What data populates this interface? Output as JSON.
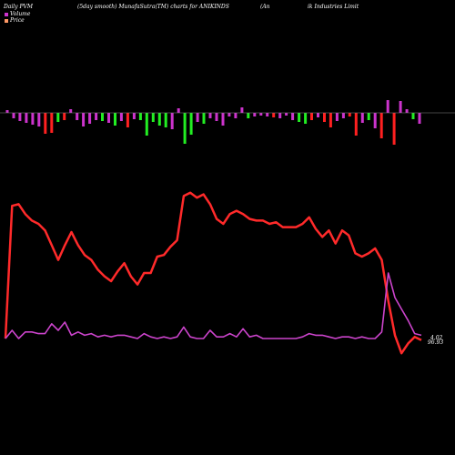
{
  "header": {
    "left": "Daily PVM",
    "middle": "(5day smooth) MunafaSutra(TM) charts for ANIKINDS",
    "right_a": "(An",
    "right_b": "ik Industries Limit"
  },
  "legend": {
    "volume_label": "Volume",
    "price_label": "Price",
    "volume_color": "#cc33cc",
    "price_color": "#ff9966"
  },
  "colors": {
    "background": "#000000",
    "price_line": "#ff2a2a",
    "pvm_line": "#cc44cc",
    "bar_up": "#ff2020",
    "bar_down": "#22ee22",
    "bar_neutral": "#cc33cc",
    "baseline": "#888888"
  },
  "chart_data": {
    "type": "line",
    "series": [
      {
        "key": "price",
        "values": [
          10,
          91,
          92,
          86,
          82,
          80,
          76,
          67,
          58,
          67,
          75,
          67,
          61,
          58,
          52,
          48,
          45,
          51,
          56,
          48,
          43,
          50,
          50,
          60,
          61,
          66,
          70,
          97,
          99,
          96,
          98,
          92,
          83,
          80,
          86,
          88,
          86,
          83,
          82,
          82,
          80,
          81,
          78,
          78,
          78,
          80,
          84,
          77,
          72,
          76,
          68,
          76,
          73,
          62,
          60,
          62,
          65,
          58,
          33,
          12,
          1,
          7,
          11,
          9
        ]
      },
      {
        "key": "pvm",
        "values": [
          10,
          15,
          10,
          14,
          14,
          13,
          13,
          19,
          15,
          20,
          12,
          14,
          12,
          13,
          11,
          12,
          11,
          12,
          12,
          11,
          10,
          13,
          11,
          10,
          11,
          10,
          11,
          17,
          11,
          10,
          10,
          15,
          11,
          11,
          13,
          11,
          16,
          11,
          12,
          10,
          10,
          10,
          10,
          10,
          10,
          11,
          13,
          12,
          12,
          11,
          10,
          11,
          11,
          10,
          11,
          10,
          10,
          14,
          50,
          35,
          28,
          21,
          13,
          12
        ]
      }
    ],
    "volume_bars": [
      {
        "v": 3,
        "dir": "n"
      },
      {
        "v": -6,
        "dir": "n"
      },
      {
        "v": -9,
        "dir": "n"
      },
      {
        "v": -11,
        "dir": "n"
      },
      {
        "v": -13,
        "dir": "n"
      },
      {
        "v": -15,
        "dir": "n"
      },
      {
        "v": -23,
        "dir": "u"
      },
      {
        "v": -22,
        "dir": "u"
      },
      {
        "v": -10,
        "dir": "d"
      },
      {
        "v": -8,
        "dir": "u"
      },
      {
        "v": 4,
        "dir": "n"
      },
      {
        "v": -8,
        "dir": "n"
      },
      {
        "v": -15,
        "dir": "n"
      },
      {
        "v": -12,
        "dir": "n"
      },
      {
        "v": -8,
        "dir": "n"
      },
      {
        "v": -9,
        "dir": "d"
      },
      {
        "v": -11,
        "dir": "n"
      },
      {
        "v": -14,
        "dir": "d"
      },
      {
        "v": -9,
        "dir": "n"
      },
      {
        "v": -16,
        "dir": "u"
      },
      {
        "v": -7,
        "dir": "n"
      },
      {
        "v": -8,
        "dir": "d"
      },
      {
        "v": -25,
        "dir": "d"
      },
      {
        "v": -10,
        "dir": "d"
      },
      {
        "v": -14,
        "dir": "d"
      },
      {
        "v": -16,
        "dir": "d"
      },
      {
        "v": -18,
        "dir": "n"
      },
      {
        "v": 5,
        "dir": "n"
      },
      {
        "v": -34,
        "dir": "d"
      },
      {
        "v": -24,
        "dir": "d"
      },
      {
        "v": -10,
        "dir": "n"
      },
      {
        "v": -12,
        "dir": "d"
      },
      {
        "v": -6,
        "dir": "n"
      },
      {
        "v": -9,
        "dir": "n"
      },
      {
        "v": -14,
        "dir": "n"
      },
      {
        "v": -4,
        "dir": "n"
      },
      {
        "v": -6,
        "dir": "n"
      },
      {
        "v": 6,
        "dir": "n"
      },
      {
        "v": -6,
        "dir": "d"
      },
      {
        "v": -4,
        "dir": "n"
      },
      {
        "v": -3,
        "dir": "n"
      },
      {
        "v": -4,
        "dir": "n"
      },
      {
        "v": -5,
        "dir": "u"
      },
      {
        "v": -6,
        "dir": "n"
      },
      {
        "v": -3,
        "dir": "n"
      },
      {
        "v": -8,
        "dir": "n"
      },
      {
        "v": -10,
        "dir": "d"
      },
      {
        "v": -12,
        "dir": "d"
      },
      {
        "v": -8,
        "dir": "u"
      },
      {
        "v": -5,
        "dir": "n"
      },
      {
        "v": -10,
        "dir": "u"
      },
      {
        "v": -16,
        "dir": "u"
      },
      {
        "v": -9,
        "dir": "n"
      },
      {
        "v": -6,
        "dir": "n"
      },
      {
        "v": -4,
        "dir": "u"
      },
      {
        "v": -25,
        "dir": "u"
      },
      {
        "v": -11,
        "dir": "n"
      },
      {
        "v": -8,
        "dir": "d"
      },
      {
        "v": -17,
        "dir": "n"
      },
      {
        "v": -28,
        "dir": "u"
      },
      {
        "v": 14,
        "dir": "n"
      },
      {
        "v": -35,
        "dir": "u"
      },
      {
        "v": 13,
        "dir": "n"
      },
      {
        "v": 4,
        "dir": "n"
      },
      {
        "v": -7,
        "dir": "d"
      },
      {
        "v": -12,
        "dir": "n"
      }
    ],
    "price_end_label": "4.02",
    "pvm_end_label": "96.93"
  }
}
